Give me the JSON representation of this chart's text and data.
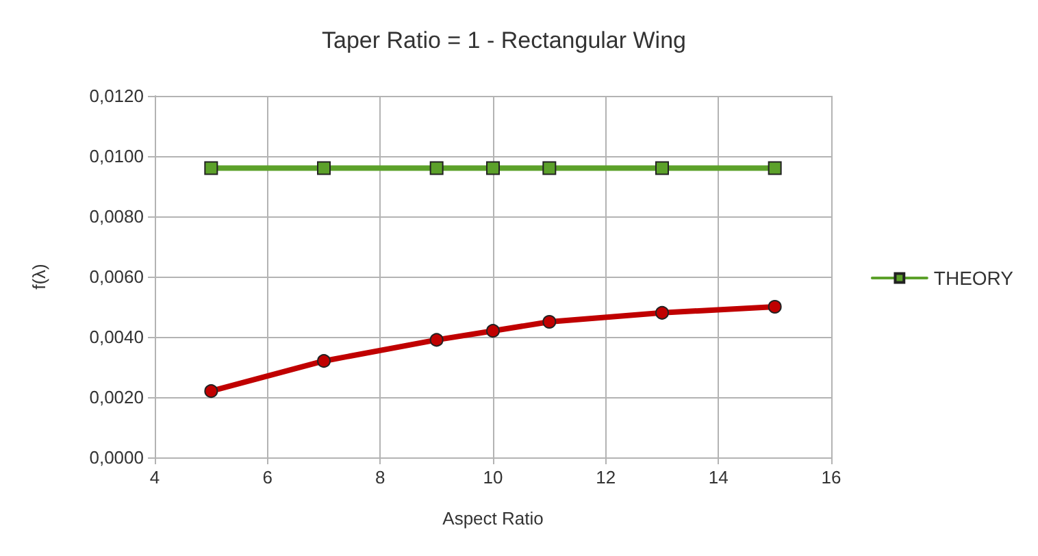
{
  "chart_data": {
    "type": "line",
    "title": "Taper Ratio = 1 - Rectangular Wing",
    "xlabel": "Aspect Ratio",
    "ylabel": "f(λ)",
    "series": [
      {
        "color": "#c00000",
        "marker": "circle",
        "x": [
          5,
          7,
          9,
          10,
          11,
          13,
          15
        ],
        "values": [
          0.0022,
          0.0032,
          0.0039,
          0.0042,
          0.0045,
          0.0048,
          0.005
        ]
      },
      {
        "name": "THEORY",
        "color": "#5ca12a",
        "marker": "square",
        "x": [
          5,
          7,
          9,
          10,
          11,
          13,
          15
        ],
        "values": [
          0.0096,
          0.0096,
          0.0096,
          0.0096,
          0.0096,
          0.0096,
          0.0096
        ]
      }
    ],
    "xlim": [
      4,
      16
    ],
    "xticks": [
      4,
      6,
      8,
      10,
      12,
      14,
      16
    ],
    "ylim": [
      0,
      0.012
    ],
    "yticks": [
      {
        "value": 0,
        "label": "0,0000"
      },
      {
        "value": 0.002,
        "label": "0,0020"
      },
      {
        "value": 0.004,
        "label": "0,0040"
      },
      {
        "value": 0.006,
        "label": "0,0060"
      },
      {
        "value": 0.008,
        "label": "0,0080"
      },
      {
        "value": 0.01,
        "label": "0,0100"
      },
      {
        "value": 0.012,
        "label": "0,0120"
      }
    ],
    "grid": true,
    "legend": "right",
    "line_style": "solid"
  }
}
